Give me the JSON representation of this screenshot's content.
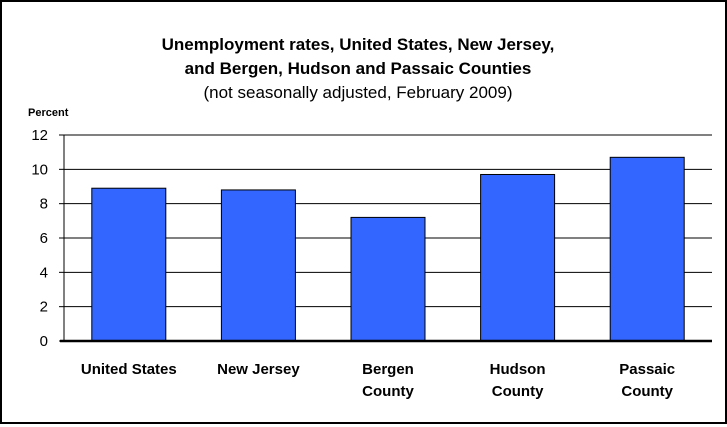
{
  "chart_data": {
    "type": "bar",
    "title_lines": [
      "Unemployment rates, United States, New Jersey,",
      "and Bergen, Hudson and Passaic Counties"
    ],
    "subtitle": "(not seasonally adjusted, February 2009)",
    "ylabel": "Percent",
    "xlabel": "",
    "ylim": [
      0,
      12
    ],
    "yticks": [
      0,
      2,
      4,
      6,
      8,
      10,
      12
    ],
    "grid": true,
    "categories": [
      [
        "United States"
      ],
      [
        "New Jersey"
      ],
      [
        "Bergen",
        "County"
      ],
      [
        "Hudson",
        "County"
      ],
      [
        "Passaic",
        "County"
      ]
    ],
    "values": [
      8.9,
      8.8,
      7.2,
      9.7,
      10.7
    ],
    "bar_color": "#3366FF"
  }
}
